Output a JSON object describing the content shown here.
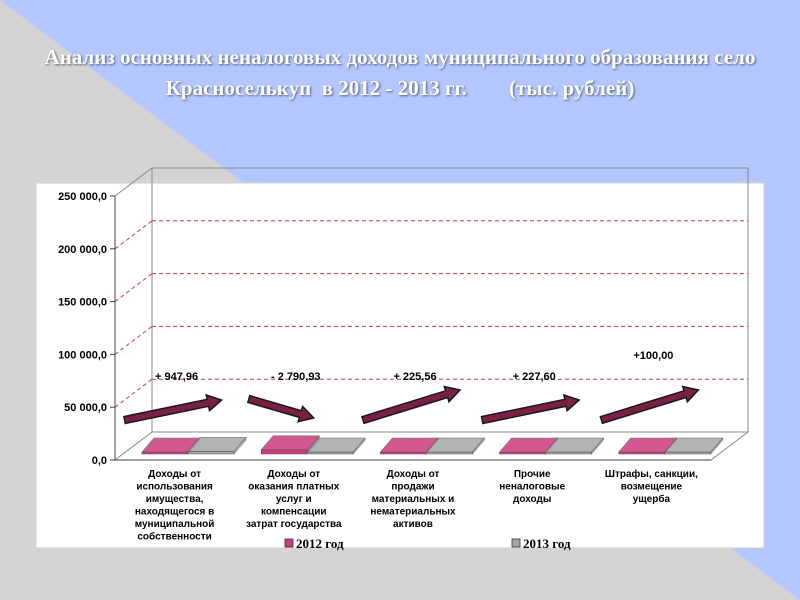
{
  "title": "Анализ основных неналоговых доходов муниципального образования село Красноселькуп  в 2012 - 2013 гг.        (тыс. рублей)",
  "colors": {
    "bg_grey": "#d4d4d4",
    "bg_blue": "#b3c6ff",
    "series_2012": "#cc3b7f",
    "series_2013": "#a6a6a6",
    "arrow": "#7a1f45"
  },
  "chart_data": {
    "type": "bar",
    "ylim": [
      0,
      250000
    ],
    "yticks": [
      "0,0",
      "50 000,0",
      "100 000,0",
      "150 000,0",
      "200 000,0",
      "250 000,0"
    ],
    "categories": [
      [
        "Доходы от",
        "использования",
        "имущества,",
        "находящегося в",
        "муниципальной",
        "собственности"
      ],
      [
        "Доходы от",
        "оказания платных",
        "услуг и",
        "компенсации",
        "затрат государства"
      ],
      [
        "Доходы от",
        "продажи",
        "материальных и",
        "нематериальных",
        "активов"
      ],
      [
        "Прочие",
        "неналоговые",
        "доходы"
      ],
      [
        "Штрафы, санкции,",
        "возмещение",
        "ущерба"
      ]
    ],
    "series": [
      {
        "name": "2012 год",
        "values": [
          1500,
          4000,
          500,
          400,
          300
        ]
      },
      {
        "name": "2013 год",
        "values": [
          2400,
          1200,
          700,
          600,
          400
        ]
      }
    ],
    "annotations": [
      "+ 947,96",
      "- 2 790,93",
      "+ 225,56",
      "+ 227,60",
      "+100,00"
    ],
    "arrow_direction": [
      "up",
      "down",
      "up",
      "up",
      "up"
    ],
    "grid": true,
    "legend_position": "bottom"
  }
}
